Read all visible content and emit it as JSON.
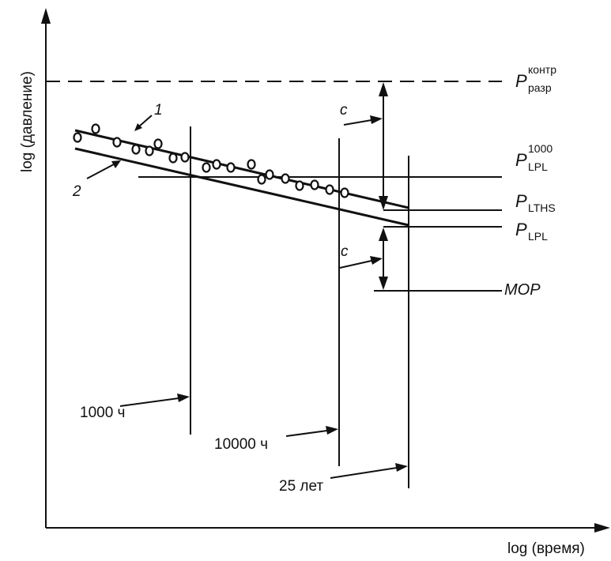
{
  "axes": {
    "y_title": "log (давление)",
    "x_title": "log (время)"
  },
  "labels": {
    "p_razr": {
      "base": "P",
      "sup": "контр",
      "sub": "разр"
    },
    "p_lpl_1000": {
      "base": "P",
      "sup": "1000",
      "sub": "LPL"
    },
    "p_lths": {
      "base": "P",
      "sub": "LTHS"
    },
    "p_lpl": {
      "base": "P",
      "sub": "LPL"
    },
    "mop": "MOP",
    "curve_1": "1",
    "curve_2": "2",
    "c_top": "c",
    "c_bottom": "c",
    "t_1000": "1000 ч",
    "t_10000": "10000 ч",
    "t_25": "25 лет"
  },
  "colors": {
    "ink": "#111111",
    "background": "#ffffff"
  }
}
